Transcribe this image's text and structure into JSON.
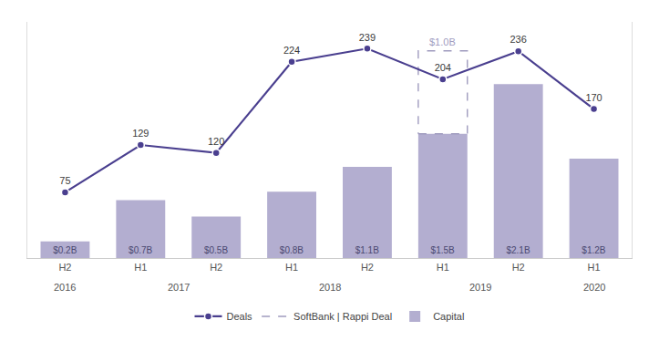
{
  "chart_data": {
    "type": "bar",
    "categories": [
      [
        "2016",
        "H2"
      ],
      [
        "2017",
        "H1"
      ],
      [
        "2017",
        "H2"
      ],
      [
        "2018",
        "H1"
      ],
      [
        "2018",
        "H2"
      ],
      [
        "2019",
        "H1"
      ],
      [
        "2019",
        "H2"
      ],
      [
        "2020",
        "H1"
      ]
    ],
    "series": [
      {
        "name": "Capital",
        "type": "bar",
        "color": "#b3aed0",
        "values": [
          0.2,
          0.7,
          0.5,
          0.8,
          1.1,
          1.5,
          2.1,
          1.2
        ],
        "value_labels": [
          "$0.2B",
          "$0.7B",
          "$0.5B",
          "$0.8B",
          "$1.1B",
          "$1.5B",
          "$2.1B",
          "$1.2B"
        ]
      },
      {
        "name": "SoftBank | Rappi Deal",
        "type": "bar",
        "color": "#a09cbf",
        "line_style": "dashed",
        "values": [
          null,
          null,
          null,
          null,
          null,
          1.0,
          null,
          null
        ],
        "value_labels": [
          null,
          null,
          null,
          null,
          null,
          "$1.0B",
          null,
          null
        ]
      },
      {
        "name": "Deals",
        "type": "line",
        "axis": "y2",
        "color": "#4a3f8f",
        "marker": "circle",
        "values": [
          75,
          129,
          120,
          224,
          239,
          204,
          236,
          170
        ]
      }
    ],
    "stacked": true,
    "data_labels": true,
    "ylim": [
      0,
      2.85
    ],
    "y2lim": [
      0,
      269.45454545454544
    ],
    "grid": false,
    "legend": "bottom",
    "tick_labels": "x"
  }
}
